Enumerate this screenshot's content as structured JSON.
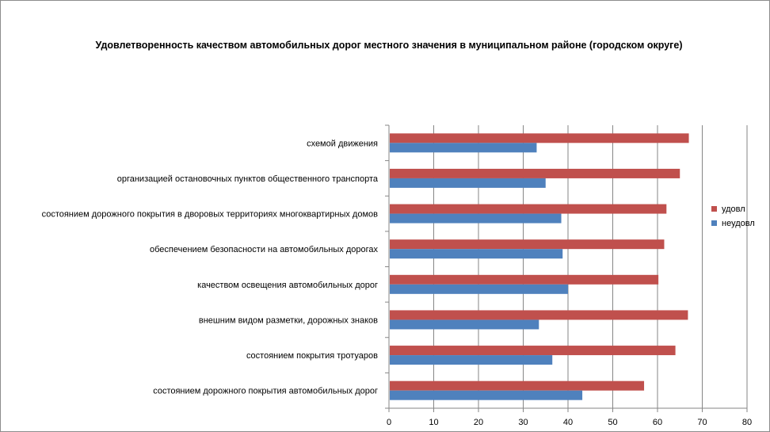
{
  "chart_data": {
    "type": "bar",
    "orientation": "horizontal",
    "title": "Удовлетворенность качеством автомобильных дорог местного значения в муниципальном районе (городском округе)",
    "categories": [
      "схемой движения",
      "организацией остановочных пунктов общественного транспорта",
      "состоянием дорожного покрытия в дворовых территориях многоквартирных домов",
      "обеспечением безопасности на автомобильных дорогах",
      "качеством освещения автомобильных дорог",
      "внешним видом разметки, дорожных знаков",
      "состоянием покрытия тротуаров",
      "состоянием дорожного покрытия автомобильных дорог"
    ],
    "series": [
      {
        "name": "удовл",
        "color": "#C0504D",
        "values": [
          67,
          65,
          62,
          61.5,
          60.2,
          66.8,
          64,
          57
        ]
      },
      {
        "name": "неудовл",
        "color": "#4F81BD",
        "values": [
          33,
          35,
          38.5,
          38.8,
          40,
          33.5,
          36.5,
          43.2
        ]
      }
    ],
    "xlim": [
      0,
      80
    ],
    "xticks": [
      "0",
      "10",
      "20",
      "30",
      "40",
      "50",
      "60",
      "70",
      "80"
    ],
    "grid": true,
    "legend_position": "right"
  }
}
